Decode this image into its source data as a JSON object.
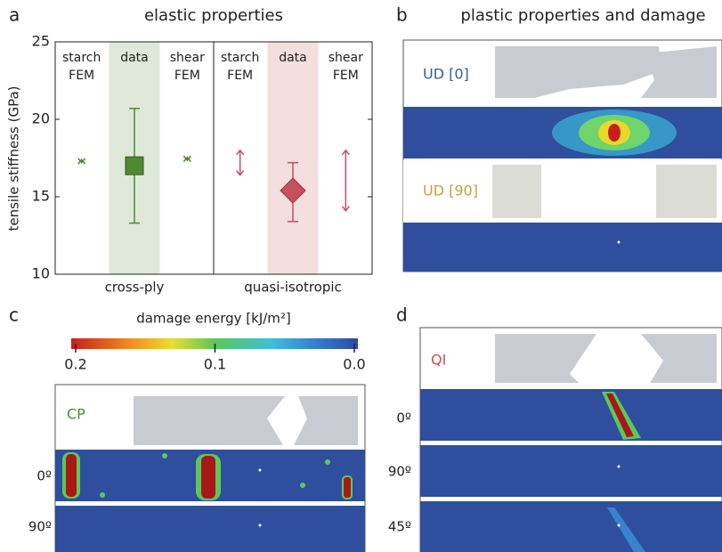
{
  "chart_data": {
    "type": "errorbar",
    "title": "elastic properties",
    "ylabel": "tensile stiffness (GPa)",
    "ylim": [
      10,
      25
    ],
    "yticks": [
      10,
      15,
      20,
      25
    ],
    "columns": [
      "starch FEM",
      "data",
      "shear FEM"
    ],
    "series": [
      {
        "name": "cross-ply",
        "color": "#4f8a33",
        "band_color": "#dfe8d9",
        "marker": "square",
        "values": [
          null,
          17.0,
          null
        ],
        "low": [
          17.2,
          13.3,
          17.35
        ],
        "high": [
          17.4,
          20.7,
          17.55
        ]
      },
      {
        "name": "quasi-isotropic",
        "color": "#c6505c",
        "band_color": "#f4dede",
        "marker": "diamond",
        "values": [
          null,
          15.4,
          null
        ],
        "low": [
          16.4,
          13.4,
          14.1
        ],
        "high": [
          18.0,
          17.2,
          18.0
        ]
      }
    ]
  },
  "panels": {
    "a": "a",
    "b": "b",
    "c": "c",
    "d": "d"
  },
  "plastic": {
    "title": "plastic properties and damage",
    "ud0": "UD [0]",
    "ud90": "UD [90]"
  },
  "colorbar": {
    "title": "damage energy [kJ/m²]",
    "clim": [
      0.2,
      0
    ],
    "ticks": [
      0.2,
      0.1,
      {
        "value": 0,
        "label": "0.0"
      }
    ]
  },
  "cp": {
    "label": "CP",
    "layers": [
      "0º",
      "90º"
    ]
  },
  "qi": {
    "label": "QI",
    "layers": [
      "0º",
      "90º",
      "45º"
    ]
  }
}
